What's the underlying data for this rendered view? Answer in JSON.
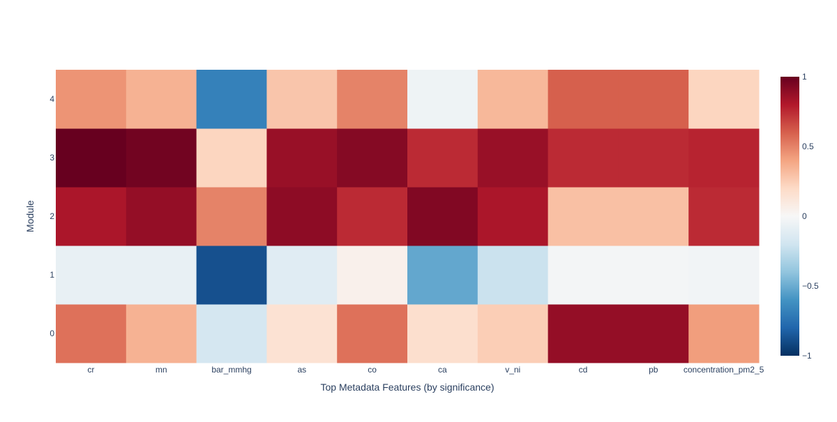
{
  "chart_data": {
    "type": "heatmap",
    "title": "",
    "xlabel": "Top Metadata Features (by significance)",
    "ylabel": "Module",
    "x_categories": [
      "cr",
      "mn",
      "bar_mmhg",
      "as",
      "co",
      "ca",
      "v_ni",
      "cd",
      "pb",
      "concentration_pm2_5"
    ],
    "y_categories": [
      "0",
      "1",
      "2",
      "3",
      "4"
    ],
    "z": [
      [
        0.55,
        0.35,
        -0.18,
        0.15,
        0.55,
        0.17,
        0.25,
        0.88,
        0.88,
        0.42
      ],
      [
        -0.08,
        -0.08,
        -0.88,
        -0.12,
        0.05,
        -0.52,
        -0.22,
        -0.02,
        -0.02,
        -0.03
      ],
      [
        0.82,
        0.88,
        0.5,
        0.9,
        0.75,
        0.93,
        0.82,
        0.3,
        0.3,
        0.75
      ],
      [
        1.0,
        0.97,
        0.22,
        0.87,
        0.92,
        0.75,
        0.87,
        0.75,
        0.75,
        0.77
      ],
      [
        0.45,
        0.35,
        -0.68,
        0.28,
        0.5,
        -0.05,
        0.33,
        0.6,
        0.6,
        0.22
      ]
    ],
    "colorscale": "RdBu reversed",
    "zmin": -1,
    "zmax": 1,
    "colorbar_ticks": [
      "1",
      "0.5",
      "0",
      "−0.5",
      "−1"
    ],
    "colorbar_tick_values": [
      1,
      0.5,
      0,
      -0.5,
      -1
    ]
  }
}
